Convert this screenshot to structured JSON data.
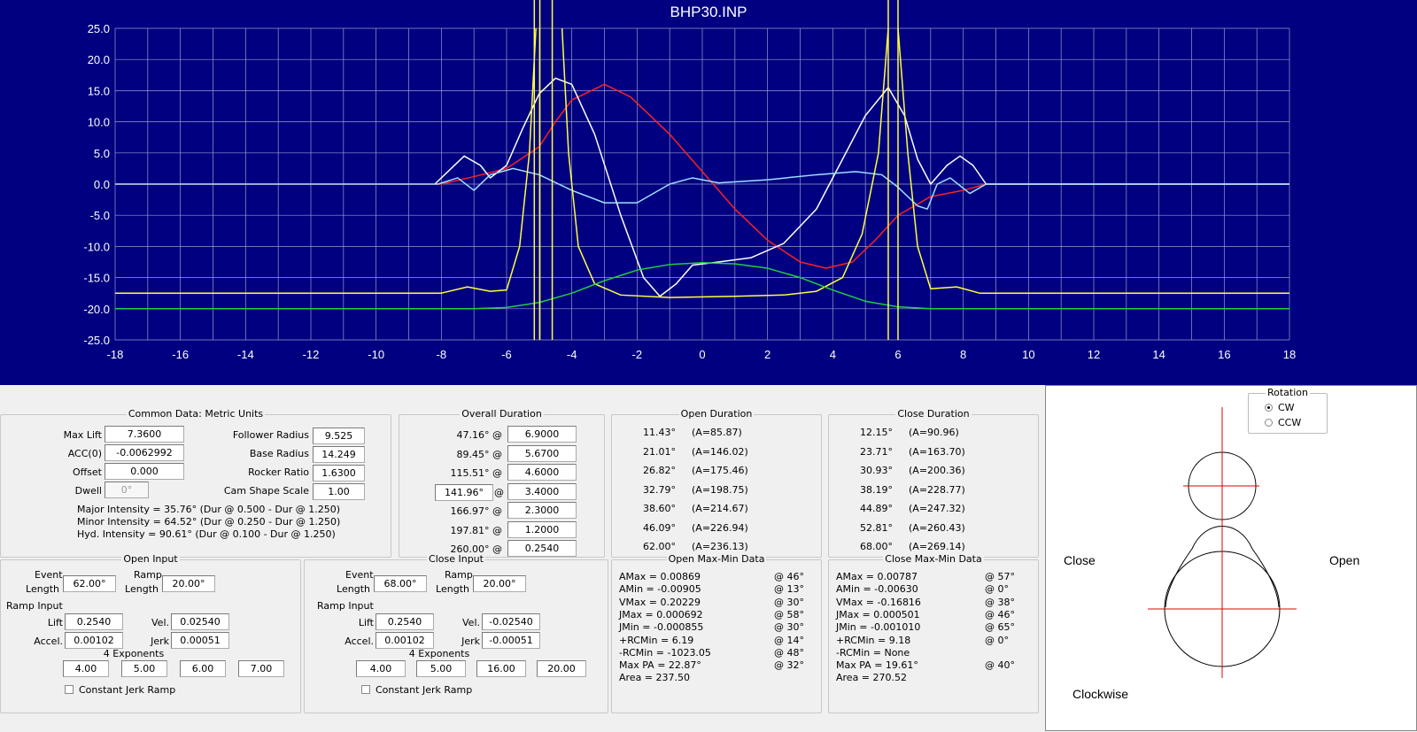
{
  "chart_data": {
    "type": "line",
    "title": "BHP30.INP",
    "xlim": [
      -18,
      18
    ],
    "ylim": [
      -25,
      25
    ],
    "grid": true,
    "xticks": [
      "-18",
      "-16",
      "-14",
      "-12",
      "-10",
      "-8",
      "-6",
      "-4",
      "-2",
      "0",
      "2",
      "4",
      "6",
      "8",
      "10",
      "12",
      "14",
      "16",
      "18"
    ],
    "yticks": [
      "25.0",
      "20.0",
      "15.0",
      "10.0",
      "5.0",
      "0.0",
      "-5.0",
      "-10.0",
      "-15.0",
      "-20.0",
      "-25.0"
    ],
    "colors": {
      "background": "#000080",
      "grid": "#9a9ad0"
    },
    "series": [
      {
        "color": "#ff2020",
        "points": [
          [
            -18,
            0
          ],
          [
            -8,
            0
          ],
          [
            -7,
            1.2
          ],
          [
            -6,
            2.5
          ],
          [
            -5,
            6
          ],
          [
            -4.5,
            10
          ],
          [
            -4,
            13.5
          ],
          [
            -3,
            16
          ],
          [
            -2.2,
            14
          ],
          [
            -1,
            8
          ],
          [
            0,
            2
          ],
          [
            1,
            -4
          ],
          [
            2,
            -9
          ],
          [
            3,
            -12.5
          ],
          [
            3.8,
            -13.5
          ],
          [
            4.6,
            -12.5
          ],
          [
            5.3,
            -9
          ],
          [
            6,
            -5
          ],
          [
            7,
            -2
          ],
          [
            8,
            -1
          ],
          [
            8.7,
            0
          ],
          [
            18,
            0
          ]
        ]
      },
      {
        "color": "#ffffff",
        "points": [
          [
            -8.2,
            0
          ],
          [
            -7.8,
            2
          ],
          [
            -7.3,
            4.5
          ],
          [
            -6.8,
            3
          ],
          [
            -6.5,
            1
          ],
          [
            -6,
            3
          ],
          [
            -5.5,
            9
          ],
          [
            -5,
            14.5
          ],
          [
            -4.5,
            17
          ],
          [
            -4,
            16
          ],
          [
            -3.3,
            8
          ],
          [
            -2.5,
            -5
          ],
          [
            -1.8,
            -15
          ],
          [
            -1.3,
            -18
          ],
          [
            -0.8,
            -16
          ],
          [
            -0.3,
            -13
          ],
          [
            0.5,
            -12.5
          ],
          [
            1.5,
            -11.8
          ],
          [
            2.5,
            -9.5
          ],
          [
            3.5,
            -4
          ],
          [
            4.2,
            3
          ],
          [
            5,
            11
          ],
          [
            5.7,
            15.5
          ],
          [
            6.2,
            11
          ],
          [
            6.6,
            4
          ],
          [
            7,
            0
          ],
          [
            7.5,
            3
          ],
          [
            7.9,
            4.5
          ],
          [
            8.3,
            3
          ],
          [
            8.7,
            0
          ],
          [
            18,
            0
          ]
        ]
      },
      {
        "color": "#a0e0ff",
        "points": [
          [
            -18,
            0
          ],
          [
            -8.1,
            0
          ],
          [
            -7.5,
            1
          ],
          [
            -7,
            -1
          ],
          [
            -6.5,
            1.5
          ],
          [
            -5.8,
            2.5
          ],
          [
            -5,
            1.5
          ],
          [
            -4,
            -1
          ],
          [
            -3,
            -3
          ],
          [
            -2,
            -3
          ],
          [
            -1,
            0
          ],
          [
            -0.3,
            1
          ],
          [
            0.5,
            0.2
          ],
          [
            2,
            0.7
          ],
          [
            3.5,
            1.5
          ],
          [
            4.7,
            2
          ],
          [
            5.5,
            1.5
          ],
          [
            6,
            -0.5
          ],
          [
            6.6,
            -3.5
          ],
          [
            6.9,
            -4
          ],
          [
            7.2,
            0
          ],
          [
            7.6,
            1
          ],
          [
            8.2,
            -1.5
          ],
          [
            8.7,
            0
          ],
          [
            18,
            0
          ]
        ]
      },
      {
        "color": "#ffff40",
        "points": [
          [
            -18,
            -17.5
          ],
          [
            -8,
            -17.5
          ],
          [
            -7.2,
            -16.5
          ],
          [
            -6.5,
            -17.2
          ],
          [
            -6,
            -17
          ],
          [
            -5.6,
            -10
          ],
          [
            -5.3,
            5
          ],
          [
            -5.1,
            25
          ]
        ]
      },
      {
        "color": "#ffff40",
        "points": [
          [
            -4.3,
            25
          ],
          [
            -4.1,
            5
          ],
          [
            -3.8,
            -10
          ],
          [
            -3.3,
            -16
          ],
          [
            -2.5,
            -17.8
          ],
          [
            -1,
            -18.2
          ],
          [
            1,
            -18
          ],
          [
            2.5,
            -17.8
          ],
          [
            3.5,
            -17.2
          ],
          [
            4.3,
            -15
          ],
          [
            4.9,
            -8
          ],
          [
            5.4,
            5
          ],
          [
            5.7,
            25
          ]
        ]
      },
      {
        "color": "#ffff40",
        "points": [
          [
            6,
            25
          ],
          [
            6.3,
            5
          ],
          [
            6.6,
            -10
          ],
          [
            7,
            -16.8
          ],
          [
            7.8,
            -16.5
          ],
          [
            8.5,
            -17.5
          ],
          [
            18,
            -17.5
          ]
        ]
      },
      {
        "color": "#20d040",
        "points": [
          [
            -18,
            -20
          ],
          [
            -7,
            -20
          ],
          [
            -6,
            -19.8
          ],
          [
            -5,
            -19
          ],
          [
            -4,
            -17.5
          ],
          [
            -3,
            -15.5
          ],
          [
            -2,
            -13.8
          ],
          [
            -1,
            -12.9
          ],
          [
            0,
            -12.6
          ],
          [
            1,
            -12.8
          ],
          [
            2,
            -13.5
          ],
          [
            3,
            -15
          ],
          [
            4,
            -17
          ],
          [
            5,
            -18.8
          ],
          [
            6,
            -19.7
          ],
          [
            7,
            -20
          ],
          [
            18,
            -20
          ]
        ]
      }
    ],
    "vertical_markers": [
      {
        "x": -5.15,
        "color": "#ffff40"
      },
      {
        "x": -4.98,
        "color": "#ffff40"
      },
      {
        "x": -4.6,
        "color": "#ffff40"
      },
      {
        "x": 5.7,
        "color": "#ffff40"
      },
      {
        "x": 6.0,
        "color": "#ffff40"
      }
    ]
  },
  "common": {
    "title": "Common Data:  Metric Units",
    "max_lift_label": "Max Lift",
    "max_lift": "7.3600",
    "acc0_label": "ACC(0)",
    "acc0": "-0.0062992",
    "offset_label": "Offset",
    "offset": "0.000",
    "dwell_label": "Dwell",
    "dwell": "0°",
    "follower_label": "Follower Radius",
    "follower": "9.525",
    "base_label": "Base Radius",
    "base": "14.249",
    "rocker_label": "Rocker Ratio",
    "rocker": "1.6300",
    "scale_label": "Cam Shape Scale",
    "scale": "1.00",
    "major": "Major Intensity = 35.76° (Dur @ 0.500 - Dur @ 1.250)",
    "minor": "Minor Intensity = 64.52° (Dur @ 0.250 - Dur @ 1.250)",
    "hyd": "Hyd.  Intensity  = 90.61° (Dur @ 0.100 - Dur @ 1.250)"
  },
  "overall": {
    "title": "Overall Duration",
    "rows": [
      [
        "47.16° @",
        "6.9000"
      ],
      [
        "89.45° @",
        "5.6700"
      ],
      [
        "115.51° @",
        "4.6000"
      ],
      [
        "141.96°",
        "3.4000"
      ],
      [
        "166.97° @",
        "2.3000"
      ],
      [
        "197.81° @",
        "1.2000"
      ],
      [
        "260.00° @",
        "0.2540"
      ]
    ],
    "at": "@"
  },
  "open_dur": {
    "title": "Open Duration",
    "rows": [
      [
        "11.43°",
        "(A=85.87)"
      ],
      [
        "21.01°",
        "(A=146.02)"
      ],
      [
        "26.82°",
        "(A=175.46)"
      ],
      [
        "32.79°",
        "(A=198.75)"
      ],
      [
        "38.60°",
        "(A=214.67)"
      ],
      [
        "46.09°",
        "(A=226.94)"
      ],
      [
        "62.00°",
        "(A=236.13)"
      ]
    ]
  },
  "close_dur": {
    "title": "Close Duration",
    "rows": [
      [
        "12.15°",
        "(A=90.96)"
      ],
      [
        "23.71°",
        "(A=163.70)"
      ],
      [
        "30.93°",
        "(A=200.36)"
      ],
      [
        "38.19°",
        "(A=228.77)"
      ],
      [
        "44.89°",
        "(A=247.32)"
      ],
      [
        "52.81°",
        "(A=260.43)"
      ],
      [
        "68.00°",
        "(A=269.14)"
      ]
    ]
  },
  "open_input": {
    "title": "Open Input",
    "event": "Event",
    "length": "Length",
    "event_val": "62.00°",
    "ramp": "Ramp",
    "ramp_val": "20.00°",
    "ramp_input": "Ramp Input",
    "lift_l": "Lift",
    "lift": "0.2540",
    "vel_l": "Vel.",
    "vel": "0.02540",
    "accel_l": "Accel.",
    "accel": "0.00102",
    "jerk_l": "Jerk",
    "jerk": "0.00051",
    "exp_title": "4 Exponents",
    "exps": [
      "4.00",
      "5.00",
      "6.00",
      "7.00"
    ],
    "cjr": "Constant Jerk Ramp"
  },
  "close_input": {
    "title": "Close Input",
    "event": "Event",
    "length": "Length",
    "event_val": "68.00°",
    "ramp": "Ramp",
    "ramp_val": "20.00°",
    "ramp_input": "Ramp Input",
    "lift_l": "Lift",
    "lift": "0.2540",
    "vel_l": "Vel.",
    "vel": "-0.02540",
    "accel_l": "Accel.",
    "accel": "0.00102",
    "jerk_l": "Jerk",
    "jerk": "-0.00051",
    "exp_title": "4 Exponents",
    "exps": [
      "4.00",
      "5.00",
      "16.00",
      "20.00"
    ],
    "cjr": "Constant Jerk Ramp"
  },
  "open_mm": {
    "title": "Open Max-Min Data",
    "rows": [
      [
        "AMax = 0.00869",
        "@ 46°"
      ],
      [
        "AMin = -0.00905",
        "@ 13°"
      ],
      [
        "VMax = 0.20229",
        "@ 30°"
      ],
      [
        "JMax = 0.000692",
        "@ 58°"
      ],
      [
        "JMin = -0.000855",
        "@ 30°"
      ],
      [
        "+RCMin = 6.19",
        "@ 14°"
      ],
      [
        "-RCMin = -1023.05",
        "@ 48°"
      ],
      [
        "Max PA = 22.87°",
        "@ 32°"
      ],
      [
        "Area = 237.50",
        ""
      ]
    ]
  },
  "close_mm": {
    "title": "Close Max-Min Data",
    "rows": [
      [
        "AMax = 0.00787",
        "@ 57°"
      ],
      [
        "AMin = -0.00630",
        "@ 0°"
      ],
      [
        "VMax = -0.16816",
        "@ 38°"
      ],
      [
        "JMax = 0.000501",
        "@ 46°"
      ],
      [
        "JMin = -0.001010",
        "@ 65°"
      ],
      [
        "+RCMin = 9.18",
        "@ 0°"
      ],
      [
        "-RCMin = None",
        ""
      ],
      [
        "Max PA = 19.61°",
        "@ 40°"
      ],
      [
        "Area = 270.52",
        ""
      ]
    ]
  },
  "right": {
    "rotation": "Rotation",
    "cw": "CW",
    "ccw": "CCW",
    "selected": "CW",
    "close": "Close",
    "open": "Open",
    "clockwise": "Clockwise"
  }
}
